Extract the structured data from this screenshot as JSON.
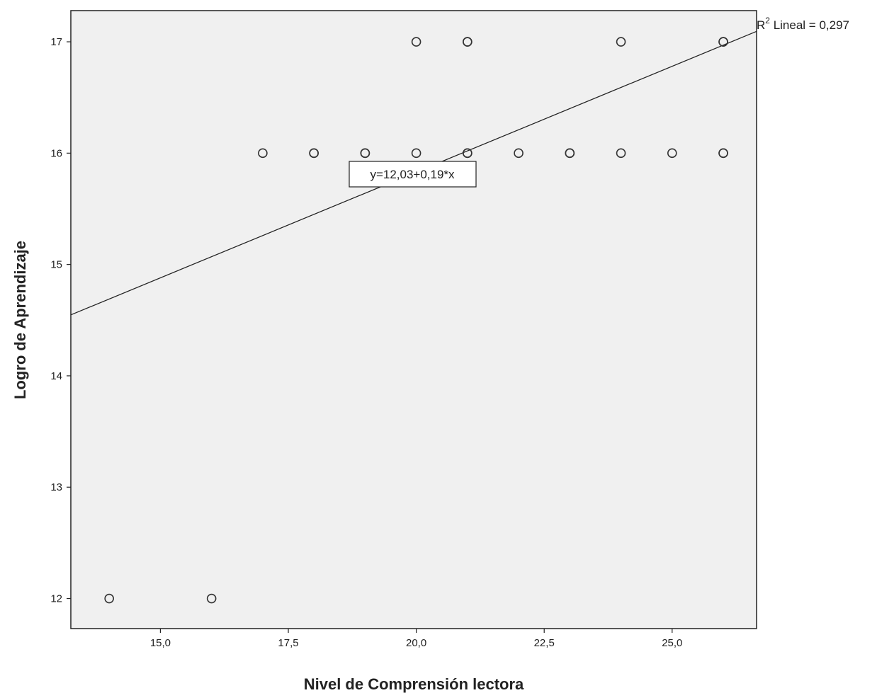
{
  "chart_data": {
    "type": "scatter",
    "xlabel": "Nivel de Comprensión lectora",
    "ylabel": "Logro de Aprendizaje",
    "xlim": [
      13.25,
      26.65
    ],
    "ylim": [
      11.73,
      17.28
    ],
    "x_ticks": [
      15.0,
      17.5,
      20.0,
      22.5,
      25.0
    ],
    "x_tick_labels": [
      "15,0",
      "17,5",
      "20,0",
      "22,5",
      "25,0"
    ],
    "y_ticks": [
      12,
      13,
      14,
      15,
      16,
      17
    ],
    "y_tick_labels": [
      "12",
      "13",
      "14",
      "15",
      "16",
      "17"
    ],
    "points": [
      {
        "x": 14,
        "y": 12
      },
      {
        "x": 16,
        "y": 12
      },
      {
        "x": 17,
        "y": 16
      },
      {
        "x": 18,
        "y": 16
      },
      {
        "x": 18,
        "y": 16
      },
      {
        "x": 19,
        "y": 16
      },
      {
        "x": 19,
        "y": 16
      },
      {
        "x": 20,
        "y": 16
      },
      {
        "x": 21,
        "y": 16
      },
      {
        "x": 21,
        "y": 16
      },
      {
        "x": 22,
        "y": 16
      },
      {
        "x": 23,
        "y": 16
      },
      {
        "x": 23,
        "y": 16
      },
      {
        "x": 24,
        "y": 16
      },
      {
        "x": 25,
        "y": 16
      },
      {
        "x": 26,
        "y": 16
      },
      {
        "x": 26,
        "y": 16
      },
      {
        "x": 20,
        "y": 17
      },
      {
        "x": 21,
        "y": 17
      },
      {
        "x": 21,
        "y": 17
      },
      {
        "x": 24,
        "y": 17
      },
      {
        "x": 26,
        "y": 17
      },
      {
        "x": 26,
        "y": 17
      }
    ],
    "fit_line": {
      "intercept": 12.03,
      "slope": 0.19
    },
    "equation_label": "y=12,03+0,19*x",
    "r2_prefix": "R",
    "r2_superscript": "2",
    "r2_label": " Lineal = 0,297",
    "grid": false,
    "colors": {
      "plot_bg": "#f0f0f0",
      "marker": "#333333",
      "line": "#222222",
      "axis": "#222222"
    }
  }
}
